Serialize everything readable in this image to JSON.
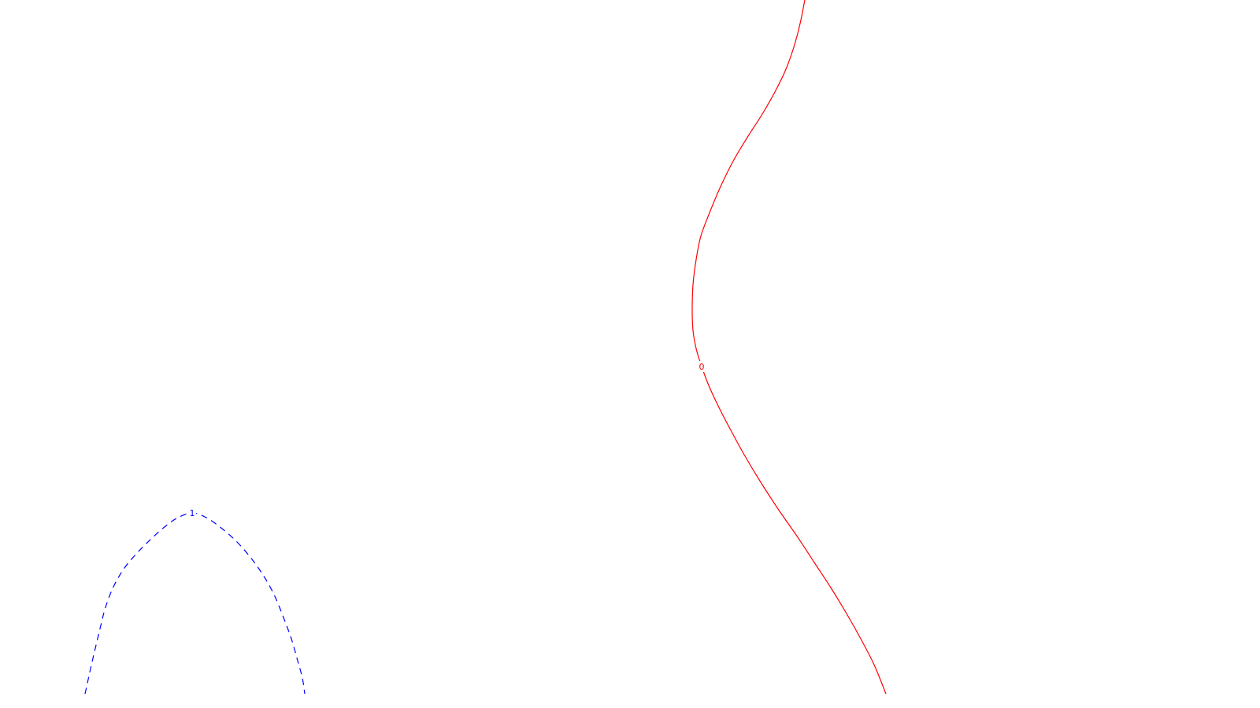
{
  "chart_data": {
    "type": "contour",
    "title": "",
    "xlabel": "",
    "ylabel": "",
    "grid": false,
    "series": [
      {
        "level_label": "0",
        "color": "#ff0000",
        "line_style": "solid",
        "points": [
          [
            1022,
            0
          ],
          [
            1016,
            30
          ],
          [
            1008,
            60
          ],
          [
            998,
            88
          ],
          [
            985,
            115
          ],
          [
            968,
            145
          ],
          [
            950,
            173
          ],
          [
            932,
            203
          ],
          [
            916,
            235
          ],
          [
            902,
            268
          ],
          [
            890,
            300
          ],
          [
            884,
            330
          ],
          [
            880,
            362
          ],
          [
            879,
            395
          ],
          [
            880,
            420
          ],
          [
            884,
            443
          ],
          [
            891,
            466
          ],
          [
            900,
            490
          ],
          [
            912,
            516
          ],
          [
            927,
            545
          ],
          [
            945,
            578
          ],
          [
            966,
            613
          ],
          [
            988,
            647
          ],
          [
            1011,
            680
          ],
          [
            1034,
            715
          ],
          [
            1055,
            747
          ],
          [
            1075,
            780
          ],
          [
            1093,
            812
          ],
          [
            1110,
            845
          ],
          [
            1125,
            882
          ]
        ],
        "label_at": [
          891,
          466
        ]
      },
      {
        "level_label": "1",
        "color": "#0000ff",
        "line_style": "dashed",
        "points": [
          [
            108,
            882
          ],
          [
            115,
            850
          ],
          [
            122,
            820
          ],
          [
            128,
            795
          ],
          [
            134,
            772
          ],
          [
            144,
            746
          ],
          [
            158,
            722
          ],
          [
            175,
            702
          ],
          [
            193,
            684
          ],
          [
            210,
            669
          ],
          [
            226,
            658
          ],
          [
            244,
            652
          ],
          [
            262,
            658
          ],
          [
            282,
            672
          ],
          [
            302,
            690
          ],
          [
            320,
            711
          ],
          [
            336,
            734
          ],
          [
            349,
            758
          ],
          [
            360,
            785
          ],
          [
            370,
            812
          ],
          [
            378,
            840
          ],
          [
            384,
            862
          ],
          [
            387,
            882
          ]
        ],
        "label_at": [
          244,
          652
        ]
      }
    ]
  }
}
